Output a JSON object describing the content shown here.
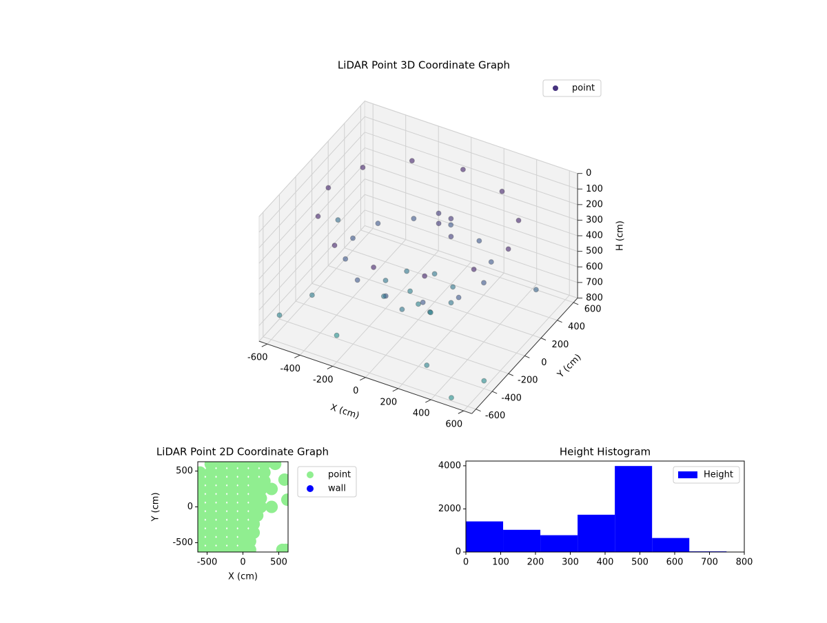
{
  "chart_data": [
    {
      "type": "scatter3d",
      "title": "LiDAR Point 3D Coordinate Graph",
      "xlabel": "X (cm)",
      "ylabel": "Y (cm)",
      "zlabel": "H (cm)",
      "xlim": [
        -650,
        650
      ],
      "ylim": [
        -650,
        650
      ],
      "zlim": [
        0,
        800
      ],
      "z_inverted": true,
      "xticks": [
        -600,
        -400,
        -200,
        0,
        200,
        400,
        600
      ],
      "yticks": [
        -600,
        -400,
        -200,
        0,
        200,
        400,
        600
      ],
      "zticks": [
        0,
        100,
        200,
        300,
        400,
        500,
        600,
        700,
        800
      ],
      "cmap": [
        "#440154",
        "#3b528b",
        "#21918c"
      ],
      "grid": true,
      "legend": "upper right",
      "series": [
        {
          "name": "point",
          "color": "#46337e",
          "x": [
            550,
            476,
            275,
            0,
            -275,
            -476,
            -550,
            -476,
            -275,
            0,
            275,
            476,
            400,
            346,
            200,
            0,
            -200,
            -346,
            -400,
            -346,
            -200,
            0,
            200,
            346,
            200,
            141,
            0,
            -141,
            -200,
            -141,
            0,
            141,
            0,
            100,
            -80,
            50,
            100,
            0,
            150,
            -640,
            -600,
            600,
            500,
            -300,
            620,
            -500,
            300
          ],
          "y": [
            0,
            275,
            476,
            550,
            476,
            275,
            0,
            -275,
            -476,
            -550,
            -476,
            -275,
            0,
            200,
            346,
            400,
            346,
            200,
            0,
            -200,
            -346,
            -400,
            -346,
            -200,
            0,
            141,
            200,
            141,
            0,
            -141,
            -200,
            -141,
            0,
            -50,
            60,
            150,
            200,
            250,
            100,
            300,
            -500,
            -400,
            -600,
            -400,
            200,
            -300,
            -500
          ],
          "z": [
            150,
            150,
            150,
            150,
            150,
            150,
            150,
            150,
            150,
            150,
            150,
            150,
            420,
            420,
            420,
            420,
            420,
            420,
            420,
            420,
            420,
            420,
            420,
            420,
            620,
            620,
            620,
            620,
            620,
            620,
            620,
            620,
            700,
            690,
            680,
            250,
            230,
            260,
            270,
            560,
            700,
            750,
            780,
            780,
            500,
            650,
            700
          ]
        }
      ]
    },
    {
      "type": "scatter",
      "title": "LiDAR Point 2D Coordinate Graph",
      "xlabel": "X (cm)",
      "ylabel": "Y (cm)",
      "xlim": [
        -630,
        630
      ],
      "ylim": [
        -630,
        630
      ],
      "xticks": [
        -500,
        0,
        500
      ],
      "yticks": [
        -500,
        0,
        500
      ],
      "legend": "outside right",
      "series": [
        {
          "name": "point",
          "color": "#90ee90",
          "x": [
            -450,
            -300,
            -150,
            0,
            150,
            300,
            450,
            -600,
            -450,
            -300,
            -150,
            0,
            150,
            300,
            -600,
            -450,
            -300,
            -150,
            0,
            150,
            300,
            -600,
            -450,
            -300,
            -150,
            0,
            150,
            250,
            -600,
            -450,
            -300,
            -150,
            0,
            150,
            250,
            -600,
            -450,
            -300,
            -150,
            0,
            150,
            250,
            400,
            -600,
            -450,
            -300,
            -150,
            0,
            150,
            200,
            -600,
            -450,
            -300,
            -150,
            0,
            150,
            -600,
            -450,
            -300,
            -150,
            0,
            150,
            -600,
            -450,
            -300,
            -150,
            0,
            100,
            -600,
            -450,
            -300,
            -150,
            0,
            100,
            550,
            600,
            400,
            580,
            620
          ],
          "y": [
            600,
            600,
            600,
            600,
            600,
            600,
            600,
            480,
            480,
            480,
            480,
            480,
            480,
            480,
            360,
            360,
            360,
            360,
            360,
            360,
            360,
            240,
            240,
            240,
            240,
            240,
            240,
            240,
            120,
            120,
            120,
            120,
            120,
            120,
            120,
            0,
            0,
            0,
            0,
            0,
            0,
            0,
            0,
            -120,
            -120,
            -120,
            -120,
            -120,
            -120,
            -120,
            -240,
            -240,
            -240,
            -240,
            -240,
            -240,
            -360,
            -360,
            -360,
            -360,
            -360,
            -360,
            -480,
            -480,
            -480,
            -480,
            -480,
            -480,
            -600,
            -600,
            -600,
            -600,
            -600,
            -600,
            -600,
            -600,
            250,
            380,
            100
          ]
        },
        {
          "name": "wall",
          "color": "#0000ff",
          "x": [],
          "y": []
        }
      ]
    },
    {
      "type": "histogram",
      "title": "Height Histogram",
      "bins": [
        0,
        107,
        214,
        321,
        428,
        535,
        642,
        749
      ],
      "xlim": [
        0,
        800
      ],
      "ylim": [
        0,
        4220
      ],
      "xticks": [
        0,
        100,
        200,
        300,
        400,
        500,
        600,
        700,
        800
      ],
      "yticks": [
        0,
        2000,
        4000
      ],
      "legend": "upper right",
      "series": [
        {
          "name": "Height",
          "color": "#0000ff",
          "values": [
            1420,
            1030,
            780,
            1730,
            3990,
            650,
            30
          ]
        }
      ]
    }
  ]
}
